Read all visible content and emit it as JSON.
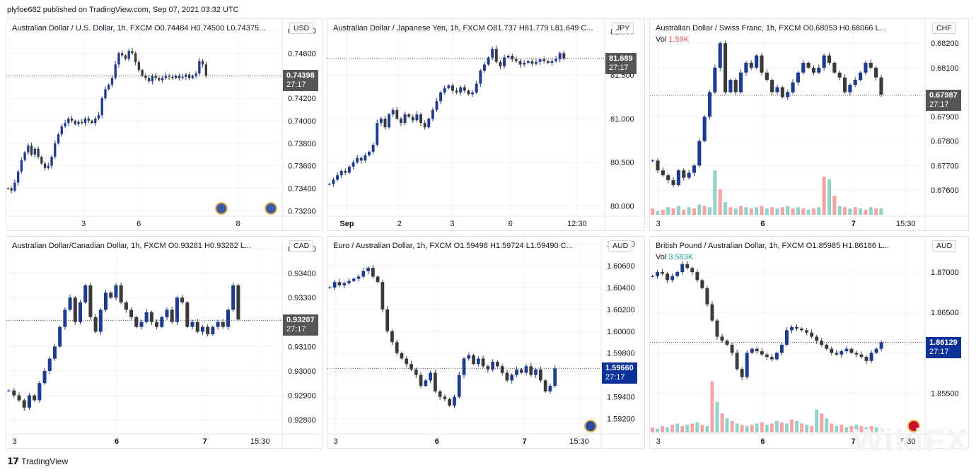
{
  "header": {
    "published": "plyfoe682 published on TradingView.com, Sep 07, 2021 03:32 UTC"
  },
  "footer": {
    "brand": "TradingView"
  },
  "watermark": "WikiFX",
  "colors": {
    "up": "#1e3b8f",
    "down": "#3a3a3a",
    "vol_up": "#91d3c8",
    "vol_down": "#f4a4a4",
    "grid": "#f0f3fa",
    "price_dark": "#555555",
    "price_blue": "#0c3299"
  },
  "chart_data": [
    {
      "type": "candlestick",
      "title": "Australian Dollar / U.S. Dollar, 1h, FXCM  O0.74484  H0.74500  L0.74375...",
      "currency": "USD",
      "y_ticks": [
        "0.74800",
        "0.74600",
        "0.74400",
        "0.74200",
        "0.74000",
        "0.73800",
        "0.73600",
        "0.73400",
        "0.73200"
      ],
      "ylim": [
        0.7319,
        0.7484
      ],
      "x_ticks": [
        {
          "label": "3",
          "frac": 0.28
        },
        {
          "label": "6",
          "frac": 0.48
        },
        {
          "label": "8",
          "frac": 0.84
        }
      ],
      "last_price": "0.74398",
      "countdown": "27:17",
      "last_value": 0.74398,
      "tag_color": "#555555",
      "path": [
        0.734,
        0.7338,
        0.7345,
        0.7355,
        0.7365,
        0.7372,
        0.7378,
        0.737,
        0.7375,
        0.7368,
        0.7362,
        0.7358,
        0.736,
        0.7368,
        0.738,
        0.7388,
        0.7395,
        0.7398,
        0.7402,
        0.74,
        0.7397,
        0.7399,
        0.7398,
        0.7402,
        0.74,
        0.7398,
        0.7402,
        0.7405,
        0.742,
        0.7428,
        0.7432,
        0.7438,
        0.745,
        0.746,
        0.7458,
        0.7455,
        0.7462,
        0.746,
        0.7452,
        0.7445,
        0.744,
        0.7438,
        0.7435,
        0.744,
        0.7438,
        0.7436,
        0.7438,
        0.744,
        0.7439,
        0.7438,
        0.744,
        0.7438,
        0.7439,
        0.7441,
        0.7438,
        0.744,
        0.7442,
        0.7453,
        0.745,
        0.744
      ],
      "flags": [
        {
          "frac": 0.78
        },
        {
          "frac": 0.96
        }
      ],
      "show_volume": false,
      "series_len": 60,
      "plot_frac": 0.73
    },
    {
      "type": "candlestick",
      "title": "Australian Dollar / Japanese Yen, 1h, FXCM  O81.737  H81.779  L81.649  C...",
      "currency": "JPY",
      "y_ticks": [
        "82.000",
        "81.500",
        "81.000",
        "80.500",
        "80.000"
      ],
      "ylim": [
        79.93,
        82.06
      ],
      "x_ticks": [
        {
          "label": "Sep",
          "frac": 0.07,
          "bold": true
        },
        {
          "label": "2",
          "frac": 0.26
        },
        {
          "label": "3",
          "frac": 0.45
        },
        {
          "label": "6",
          "frac": 0.66
        },
        {
          "label": "12:30",
          "frac": 0.9
        }
      ],
      "last_price": "81.689",
      "countdown": "27:17",
      "last_value": 81.689,
      "tag_color": "#555555",
      "path": [
        80.25,
        80.3,
        80.35,
        80.4,
        80.38,
        80.45,
        80.5,
        80.55,
        80.52,
        80.58,
        80.62,
        80.7,
        80.95,
        81.0,
        80.9,
        81.05,
        81.1,
        81.0,
        80.95,
        81.05,
        81.02,
        80.98,
        81.05,
        80.95,
        80.9,
        81.0,
        81.1,
        81.2,
        81.3,
        81.35,
        81.38,
        81.32,
        81.3,
        81.36,
        81.32,
        81.28,
        81.3,
        81.4,
        81.55,
        81.62,
        81.7,
        81.8,
        81.65,
        81.6,
        81.7,
        81.72,
        81.68,
        81.66,
        81.62,
        81.64,
        81.66,
        81.63,
        81.65,
        81.68,
        81.66,
        81.64,
        81.66,
        81.68,
        81.75,
        81.69
      ],
      "flags": [],
      "show_volume": false,
      "series_len": 60,
      "plot_frac": 0.86
    },
    {
      "type": "candlestick",
      "title": "Australian Dollar / Swiss Franc, 1h, FXCM  O0.68053  H0.68066  L...",
      "currency": "CHF",
      "volume_label": "Vol",
      "volume_value": "1.59K",
      "y_ticks": [
        "0.68200",
        "0.68100",
        "0.68000",
        "0.67900",
        "0.67800",
        "0.67700",
        "0.67600"
      ],
      "ylim": [
        0.6751,
        0.6827
      ],
      "x_ticks": [
        {
          "label": "3",
          "frac": 0.03
        },
        {
          "label": "6",
          "frac": 0.41,
          "bold": true
        },
        {
          "label": "7",
          "frac": 0.74,
          "bold": true
        },
        {
          "label": "15:30",
          "frac": 0.93
        }
      ],
      "last_price": "0.67987",
      "countdown": "27:17",
      "last_value": 0.67987,
      "tag_color": "#555555",
      "path": [
        0.6772,
        0.6768,
        0.6766,
        0.6764,
        0.6762,
        0.6768,
        0.6765,
        0.6767,
        0.677,
        0.678,
        0.679,
        0.68,
        0.681,
        0.682,
        0.68,
        0.6805,
        0.68,
        0.6808,
        0.6812,
        0.681,
        0.6815,
        0.6808,
        0.6805,
        0.68,
        0.6802,
        0.6798,
        0.68,
        0.6804,
        0.6808,
        0.6812,
        0.681,
        0.6808,
        0.681,
        0.6815,
        0.6812,
        0.6808,
        0.6806,
        0.68,
        0.6803,
        0.6805,
        0.6808,
        0.6812,
        0.681,
        0.6806,
        0.6799
      ],
      "volume": [
        [
          0,
          0.1
        ],
        [
          1,
          0.06
        ],
        [
          0,
          0.08
        ],
        [
          1,
          0.12
        ],
        [
          0,
          0.1
        ],
        [
          1,
          0.14
        ],
        [
          0,
          0.08
        ],
        [
          1,
          0.12
        ],
        [
          0,
          0.1
        ],
        [
          1,
          0.16
        ],
        [
          0,
          0.14
        ],
        [
          1,
          0.12
        ],
        [
          1,
          0.7
        ],
        [
          0,
          0.4
        ],
        [
          1,
          0.2
        ],
        [
          0,
          0.12
        ],
        [
          1,
          0.1
        ],
        [
          0,
          0.14
        ],
        [
          1,
          0.12
        ],
        [
          0,
          0.1
        ],
        [
          1,
          0.12
        ],
        [
          0,
          0.14
        ],
        [
          1,
          0.1
        ],
        [
          0,
          0.12
        ],
        [
          1,
          0.1
        ],
        [
          0,
          0.12
        ],
        [
          1,
          0.14
        ],
        [
          0,
          0.1
        ],
        [
          1,
          0.12
        ],
        [
          0,
          0.1
        ],
        [
          1,
          0.08
        ],
        [
          0,
          0.1
        ],
        [
          1,
          0.12
        ],
        [
          0,
          0.6
        ],
        [
          1,
          0.56
        ],
        [
          0,
          0.3
        ],
        [
          1,
          0.14
        ],
        [
          0,
          0.12
        ],
        [
          1,
          0.1
        ],
        [
          0,
          0.12
        ],
        [
          1,
          0.1
        ],
        [
          0,
          0.08
        ],
        [
          1,
          0.12
        ],
        [
          0,
          0.1
        ],
        [
          1,
          0.1
        ]
      ],
      "flags": [],
      "show_volume": true,
      "series_len": 45,
      "plot_frac": 0.85
    },
    {
      "type": "candlestick",
      "title": "Australian Dollar/Canadian Dollar, 1h, FXCM  O0.93281  H0.93282  L...",
      "currency": "CAD",
      "y_ticks": [
        "0.93500",
        "0.93400",
        "0.93300",
        "0.93200",
        "0.93100",
        "0.93000",
        "0.92900",
        "0.92800"
      ],
      "ylim": [
        0.9276,
        0.9352
      ],
      "x_ticks": [
        {
          "label": "3",
          "frac": 0.03
        },
        {
          "label": "6",
          "frac": 0.4,
          "bold": true
        },
        {
          "label": "7",
          "frac": 0.72,
          "bold": true
        },
        {
          "label": "15:30",
          "frac": 0.92
        }
      ],
      "last_price": "0.93207",
      "countdown": "27:17",
      "last_value": 0.93207,
      "tag_color": "#555555",
      "path": [
        0.9292,
        0.929,
        0.9288,
        0.9285,
        0.929,
        0.9288,
        0.9295,
        0.93,
        0.9305,
        0.931,
        0.9318,
        0.9325,
        0.933,
        0.932,
        0.9328,
        0.9335,
        0.9322,
        0.9316,
        0.9325,
        0.9332,
        0.933,
        0.9335,
        0.9328,
        0.9325,
        0.9322,
        0.9318,
        0.932,
        0.9324,
        0.932,
        0.9318,
        0.9322,
        0.9325,
        0.932,
        0.933,
        0.9328,
        0.9318,
        0.932,
        0.9316,
        0.9318,
        0.9315,
        0.9318,
        0.932,
        0.9318,
        0.9325,
        0.9335,
        0.9321
      ],
      "flags": [],
      "show_volume": false,
      "series_len": 46,
      "plot_frac": 0.85
    },
    {
      "type": "candlestick",
      "title": "Euro / Australian Dollar, 1h, FXCM  O1.59498  H1.59724  L1.59490  C...",
      "currency": "AUD",
      "y_ticks": [
        "1.60800",
        "1.60600",
        "1.60400",
        "1.60200",
        "1.60000",
        "1.59800",
        "1.59600",
        "1.59400",
        "1.59200"
      ],
      "ylim": [
        1.591,
        1.608
      ],
      "x_ticks": [
        {
          "label": "3",
          "frac": 0.03
        },
        {
          "label": "6",
          "frac": 0.4,
          "bold": true
        },
        {
          "label": "7",
          "frac": 0.72,
          "bold": true
        },
        {
          "label": "15:30",
          "frac": 0.92
        }
      ],
      "last_price": "1.59660",
      "countdown": "27:17",
      "last_value": 1.5966,
      "tag_color": "#0c3299",
      "path": [
        1.604,
        1.6045,
        1.6042,
        1.6044,
        1.6046,
        1.6048,
        1.605,
        1.6055,
        1.6058,
        1.605,
        1.6045,
        1.602,
        1.6,
        1.599,
        1.598,
        1.5975,
        1.597,
        1.5965,
        1.596,
        1.595,
        1.5955,
        1.5962,
        1.5945,
        1.594,
        1.5938,
        1.5932,
        1.594,
        1.596,
        1.5975,
        1.5978,
        1.597,
        1.5975,
        1.5968,
        1.5965,
        1.5972,
        1.5968,
        1.5962,
        1.5955,
        1.596,
        1.5965,
        1.5962,
        1.5968,
        1.596,
        1.5965,
        1.5955,
        1.5945,
        1.595,
        1.5966
      ],
      "flags": [
        {
          "frac": 0.96,
          "eu": true
        }
      ],
      "show_volume": false,
      "series_len": 48,
      "plot_frac": 0.84
    },
    {
      "type": "candlestick",
      "title": "British Pound / Australian Dollar, 1h, FXCM  O1.85985  H1.86186  L...",
      "currency": "AUD",
      "volume_label": "Vol",
      "volume_value": "3.583K",
      "y_ticks": [
        "1.87000",
        "1.86500",
        "1.86000",
        "1.85500"
      ],
      "ylim": [
        1.8505,
        1.8735
      ],
      "x_ticks": [
        {
          "label": "3",
          "frac": 0.03
        },
        {
          "label": "6",
          "frac": 0.41,
          "bold": true
        },
        {
          "label": "7",
          "frac": 0.74,
          "bold": true
        },
        {
          "label": "15:30",
          "frac": 0.93
        }
      ],
      "last_price": "1.86129",
      "countdown": "27:17",
      "last_value": 1.86129,
      "tag_color": "#0c3299",
      "path": [
        1.8695,
        1.87,
        1.8698,
        1.869,
        1.8695,
        1.87,
        1.871,
        1.8705,
        1.87,
        1.869,
        1.868,
        1.866,
        1.864,
        1.862,
        1.8615,
        1.861,
        1.86,
        1.858,
        1.857,
        1.86,
        1.8605,
        1.8602,
        1.8598,
        1.8595,
        1.8592,
        1.86,
        1.861,
        1.8628,
        1.8632,
        1.863,
        1.8628,
        1.8625,
        1.862,
        1.8615,
        1.861,
        1.8605,
        1.86,
        1.8598,
        1.8602,
        1.8605,
        1.86,
        1.8598,
        1.8595,
        1.859,
        1.86,
        1.8605,
        1.8613
      ],
      "volume": [
        [
          0,
          0.08
        ],
        [
          1,
          0.06
        ],
        [
          0,
          0.1
        ],
        [
          1,
          0.08
        ],
        [
          0,
          0.12
        ],
        [
          1,
          0.14
        ],
        [
          0,
          0.1
        ],
        [
          1,
          0.12
        ],
        [
          0,
          0.14
        ],
        [
          1,
          0.16
        ],
        [
          0,
          0.12
        ],
        [
          1,
          0.1
        ],
        [
          0,
          0.8
        ],
        [
          1,
          0.48
        ],
        [
          0,
          0.3
        ],
        [
          1,
          0.22
        ],
        [
          0,
          0.18
        ],
        [
          1,
          0.14
        ],
        [
          0,
          0.12
        ],
        [
          1,
          0.1
        ],
        [
          0,
          0.12
        ],
        [
          1,
          0.14
        ],
        [
          0,
          0.16
        ],
        [
          1,
          0.12
        ],
        [
          0,
          0.14
        ],
        [
          1,
          0.18
        ],
        [
          0,
          0.16
        ],
        [
          1,
          0.14
        ],
        [
          0,
          0.2
        ],
        [
          1,
          0.18
        ],
        [
          0,
          0.14
        ],
        [
          1,
          0.12
        ],
        [
          0,
          0.1
        ],
        [
          1,
          0.36
        ],
        [
          0,
          0.3
        ],
        [
          1,
          0.22
        ],
        [
          0,
          0.14
        ],
        [
          1,
          0.1
        ],
        [
          0,
          0.12
        ],
        [
          1,
          0.08
        ],
        [
          0,
          0.1
        ],
        [
          1,
          0.12
        ],
        [
          0,
          0.1
        ],
        [
          1,
          0.08
        ],
        [
          0,
          0.1
        ],
        [
          1,
          0.08
        ],
        [
          0,
          0.06
        ]
      ],
      "flags": [
        {
          "frac": 0.96,
          "gb": true
        }
      ],
      "show_volume": true,
      "series_len": 47,
      "plot_frac": 0.85
    }
  ]
}
